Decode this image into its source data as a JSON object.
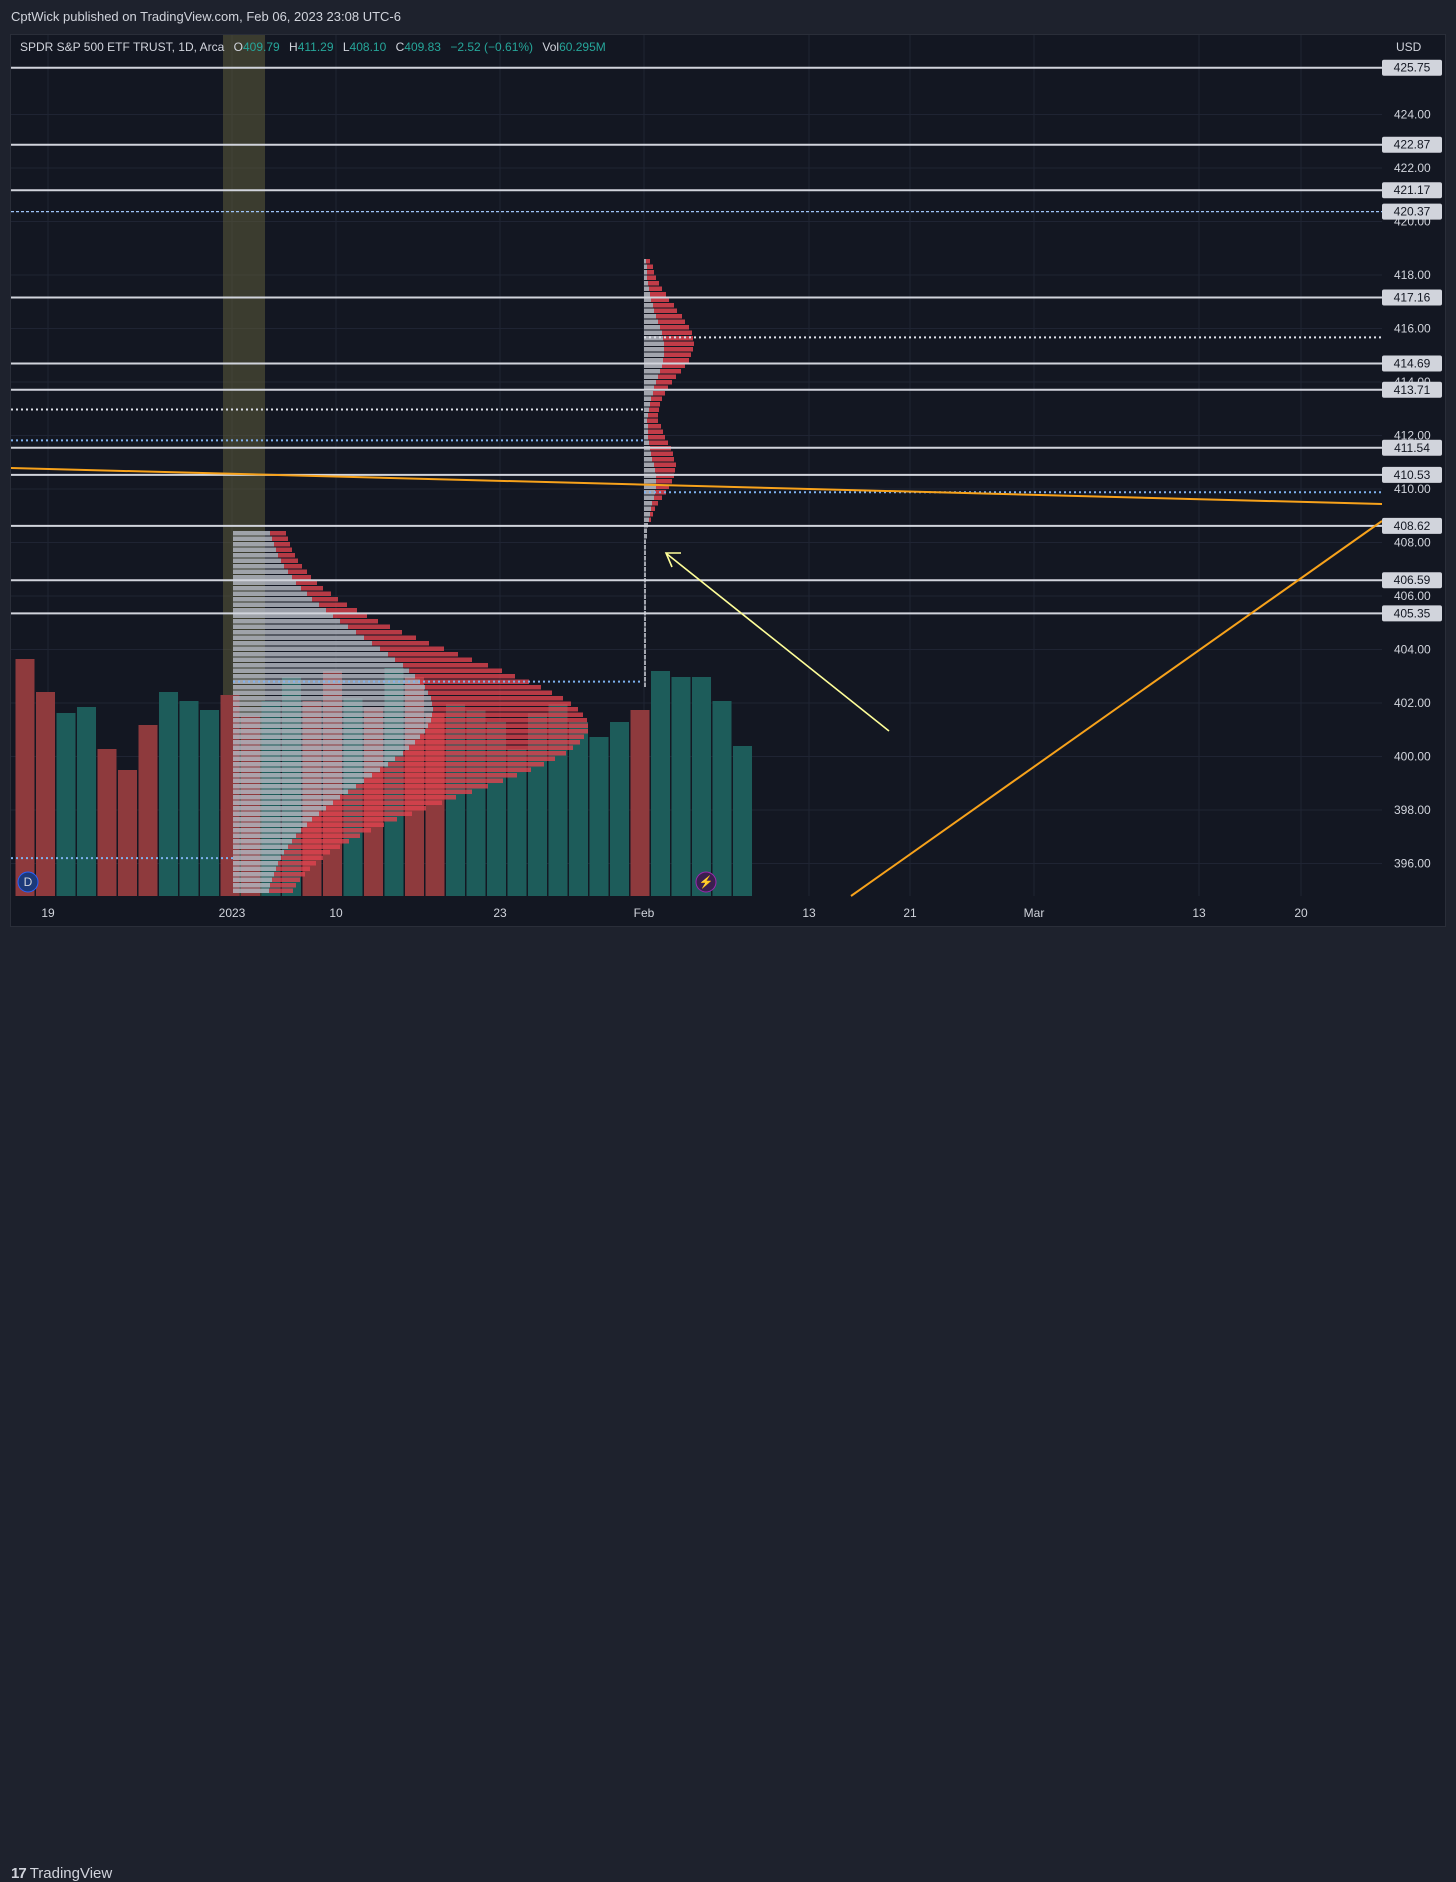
{
  "header": {
    "published": "CptWick published on TradingView.com, Feb 06, 2023 23:08 UTC-6"
  },
  "legend": {
    "symbol": "SPDR S&P 500 ETF TRUST, 1D, Arca",
    "open_label": "O",
    "open": "409.79",
    "high_label": "H",
    "high": "411.29",
    "low_label": "L",
    "low": "408.10",
    "close_label": "C",
    "close": "409.83",
    "change": "−2.52 (−0.61%)",
    "vol_label": "Vol",
    "vol": "60.295M"
  },
  "footer": {
    "brand": "TradingView",
    "logo_mark": "17"
  },
  "colors": {
    "bg": "#131722",
    "bull": "#26a69a",
    "bear": "#ef5350",
    "level_line": "#d1d4dc",
    "trendline": "#f7a21b",
    "highlight": "#5d5b3a",
    "arrow": "#ffff99"
  },
  "chart_data": {
    "type": "line",
    "currency": "USD",
    "y_axis": {
      "range": [
        394.7,
        426
      ],
      "ticks": [
        "424.00",
        "422.00",
        "420.00",
        "418.00",
        "416.00",
        "414.00",
        "412.00",
        "410.00",
        "408.00",
        "406.00",
        "404.00",
        "402.00",
        "400.00",
        "398.00",
        "396.00"
      ]
    },
    "x_axis": {
      "ticks": [
        "19",
        "2023",
        "10",
        "23",
        "Feb",
        "13",
        "21",
        "Mar",
        "13",
        "20"
      ]
    },
    "horizontal_levels": [
      {
        "value": 425.75,
        "label": "425.75",
        "style": "solid"
      },
      {
        "value": 422.87,
        "label": "422.87",
        "style": "solid"
      },
      {
        "value": 421.17,
        "label": "421.17",
        "style": "solid"
      },
      {
        "value": 420.37,
        "label": "420.37",
        "style": "dashed-blue"
      },
      {
        "value": 417.16,
        "label": "417.16",
        "style": "solid"
      },
      {
        "value": 414.69,
        "label": "414.69",
        "style": "solid"
      },
      {
        "value": 413.71,
        "label": "413.71",
        "style": "solid"
      },
      {
        "value": 411.54,
        "label": "411.54",
        "style": "solid"
      },
      {
        "value": 410.53,
        "label": "410.53",
        "style": "solid"
      },
      {
        "value": 408.62,
        "label": "408.62",
        "style": "solid"
      },
      {
        "value": 406.59,
        "label": "406.59",
        "style": "solid"
      },
      {
        "value": 405.35,
        "label": "405.35",
        "style": "solid"
      }
    ],
    "dotted_levels": [
      {
        "value": 415.67,
        "from": "Feb",
        "color": "white"
      },
      {
        "value": 412.97,
        "to": "Feb",
        "color": "white"
      },
      {
        "value": 411.82,
        "to": "Feb",
        "color": "blue"
      },
      {
        "value": 409.88,
        "from": "Feb",
        "color": "blue"
      },
      {
        "value": 402.8,
        "color": "blue"
      },
      {
        "value": 396.2,
        "color": "blue"
      }
    ],
    "trendlines": [
      {
        "name": "resistance",
        "from": {
          "x": "Dec 15",
          "y": 410.6
        },
        "to": {
          "x": "Mar 27",
          "y": 409.1
        }
      },
      {
        "name": "support",
        "from": {
          "x": "Feb 15",
          "y": 394.7
        },
        "to": {
          "x": "Mar 27",
          "y": 408.6
        }
      }
    ],
    "volume": {
      "values": [
        0.79,
        0.68,
        0.61,
        0.63,
        0.49,
        0.42,
        0.57,
        0.68,
        0.65,
        0.62,
        0.67,
        0.6,
        0.65,
        0.73,
        0.65,
        0.75,
        0.66,
        0.63,
        0.76,
        0.73,
        0.61,
        0.64,
        0.62,
        0.58,
        0.49,
        0.61,
        0.64,
        0.58,
        0.53,
        0.58,
        0.62,
        0.75,
        0.73,
        0.73,
        0.65,
        0.5
      ],
      "direction": [
        "down",
        "down",
        "up",
        "up",
        "down",
        "down",
        "down",
        "up",
        "up",
        "up",
        "down",
        "down",
        "up",
        "up",
        "down",
        "down",
        "up",
        "down",
        "up",
        "down",
        "down",
        "up",
        "up",
        "up",
        "up",
        "up",
        "up",
        "up",
        "up",
        "up",
        "down",
        "up",
        "up",
        "up",
        "up",
        "up"
      ]
    },
    "annotations": [
      "price-level labels",
      "arrow pointing to Feb 3 volume profile",
      "highlighted 2023 year-start band"
    ]
  }
}
